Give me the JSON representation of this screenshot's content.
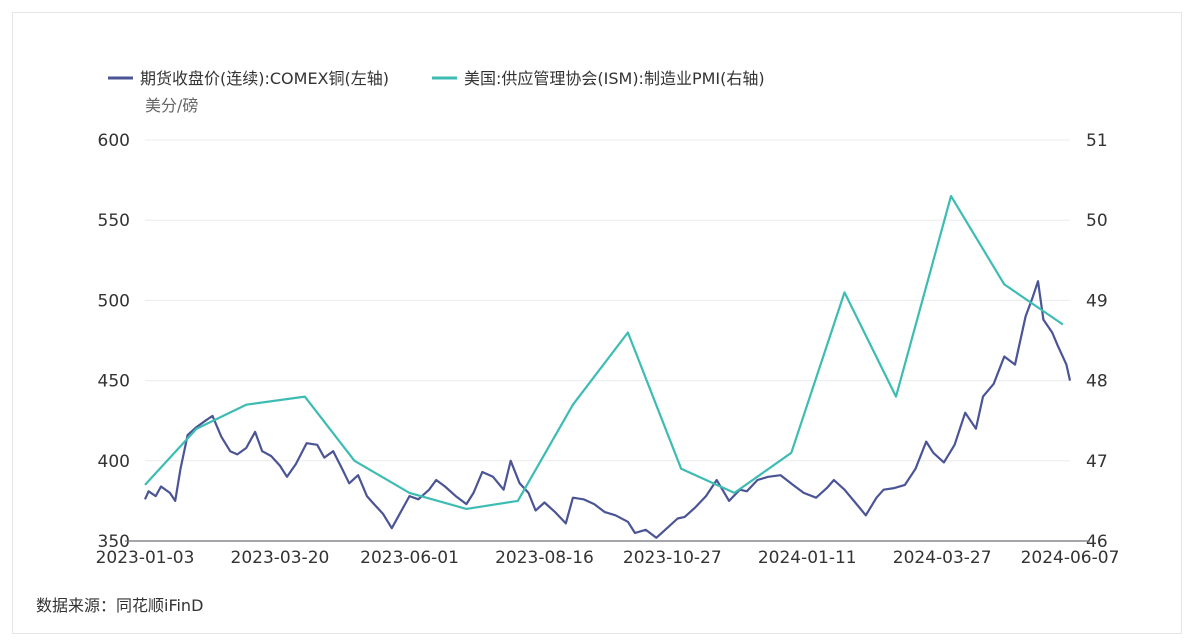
{
  "source_note": "数据来源：同花顺iFinD",
  "colors": {
    "copper": "#4b5495",
    "pmi": "#3dbcb4",
    "grid": "#ececec",
    "axis": "#6e7079"
  },
  "chart_data": {
    "type": "line",
    "title": "",
    "unit_left": "美分/磅",
    "x_tick_labels": [
      "2023-01-03",
      "2023-03-20",
      "2023-06-01",
      "2023-08-16",
      "2023-10-27",
      "2024-01-11",
      "2024-03-27",
      "2024-06-07"
    ],
    "x_range": [
      "2023-01-03",
      "2024-06-07"
    ],
    "y_left": {
      "min": 350,
      "max": 600,
      "ticks": [
        "350",
        "400",
        "450",
        "500",
        "550",
        "600"
      ]
    },
    "y_right": {
      "min": 46,
      "max": 51,
      "ticks": [
        "46",
        "47",
        "48",
        "49",
        "50",
        "51"
      ]
    },
    "grid": true,
    "legend_position": "top-left",
    "series": [
      {
        "name": "期货收盘价(连续):COMEX铜(左轴)",
        "axis": "left",
        "x": [
          "2023-01-03",
          "2023-01-05",
          "2023-01-09",
          "2023-01-12",
          "2023-01-17",
          "2023-01-20",
          "2023-01-23",
          "2023-01-27",
          "2023-02-01",
          "2023-02-06",
          "2023-02-10",
          "2023-02-15",
          "2023-02-20",
          "2023-02-24",
          "2023-03-01",
          "2023-03-06",
          "2023-03-10",
          "2023-03-15",
          "2023-03-20",
          "2023-03-24",
          "2023-03-29",
          "2023-04-04",
          "2023-04-10",
          "2023-04-14",
          "2023-04-19",
          "2023-04-24",
          "2023-04-28",
          "2023-05-03",
          "2023-05-08",
          "2023-05-12",
          "2023-05-17",
          "2023-05-22",
          "2023-05-26",
          "2023-06-01",
          "2023-06-06",
          "2023-06-12",
          "2023-06-16",
          "2023-06-21",
          "2023-06-27",
          "2023-07-03",
          "2023-07-07",
          "2023-07-12",
          "2023-07-18",
          "2023-07-24",
          "2023-07-28",
          "2023-08-02",
          "2023-08-07",
          "2023-08-11",
          "2023-08-16",
          "2023-08-22",
          "2023-08-28",
          "2023-09-01",
          "2023-09-07",
          "2023-09-13",
          "2023-09-19",
          "2023-09-25",
          "2023-10-02",
          "2023-10-06",
          "2023-10-12",
          "2023-10-18",
          "2023-10-24",
          "2023-10-30",
          "2023-11-03",
          "2023-11-09",
          "2023-11-15",
          "2023-11-21",
          "2023-11-28",
          "2023-12-04",
          "2023-12-08",
          "2023-12-14",
          "2023-12-20",
          "2023-12-27",
          "2024-01-03",
          "2024-01-09",
          "2024-01-16",
          "2024-01-22",
          "2024-01-26",
          "2024-02-01",
          "2024-02-07",
          "2024-02-13",
          "2024-02-19",
          "2024-02-23",
          "2024-02-29",
          "2024-03-06",
          "2024-03-12",
          "2024-03-18",
          "2024-03-22",
          "2024-03-28",
          "2024-04-03",
          "2024-04-09",
          "2024-04-15",
          "2024-04-19",
          "2024-04-25",
          "2024-05-01",
          "2024-05-07",
          "2024-05-13",
          "2024-05-17",
          "2024-05-20",
          "2024-05-23",
          "2024-05-28",
          "2024-05-31",
          "2024-06-05",
          "2024-06-07"
        ],
        "values": [
          376,
          381,
          378,
          384,
          380,
          375,
          395,
          416,
          421,
          425,
          428,
          415,
          406,
          404,
          408,
          418,
          406,
          403,
          397,
          390,
          398,
          411,
          410,
          402,
          406,
          395,
          386,
          391,
          378,
          373,
          367,
          358,
          366,
          378,
          376,
          382,
          388,
          384,
          378,
          373,
          380,
          393,
          390,
          382,
          400,
          386,
          380,
          369,
          374,
          368,
          361,
          377,
          376,
          373,
          368,
          366,
          362,
          355,
          357,
          352,
          358,
          364,
          365,
          371,
          378,
          388,
          375,
          382,
          381,
          388,
          390,
          391,
          385,
          380,
          377,
          383,
          388,
          382,
          374,
          366,
          377,
          382,
          383,
          385,
          395,
          412,
          405,
          399,
          410,
          430,
          420,
          440,
          448,
          465,
          460,
          490,
          502,
          512,
          488,
          480,
          472,
          460,
          450
        ]
      },
      {
        "name": "美国:供应管理协会(ISM):制造业PMI(右轴)",
        "axis": "right",
        "x": [
          "2023-01-03",
          "2023-02-01",
          "2023-03-01",
          "2023-04-03",
          "2023-05-01",
          "2023-06-01",
          "2023-07-03",
          "2023-08-01",
          "2023-09-01",
          "2023-10-02",
          "2023-11-01",
          "2023-12-01",
          "2024-01-02",
          "2024-02-01",
          "2024-03-01",
          "2024-04-01",
          "2024-05-01",
          "2024-06-03"
        ],
        "values": [
          46.7,
          47.4,
          47.7,
          47.8,
          47.0,
          46.6,
          46.4,
          46.5,
          47.7,
          48.6,
          46.9,
          46.6,
          47.1,
          49.1,
          47.8,
          50.3,
          49.2,
          48.7
        ]
      }
    ]
  }
}
